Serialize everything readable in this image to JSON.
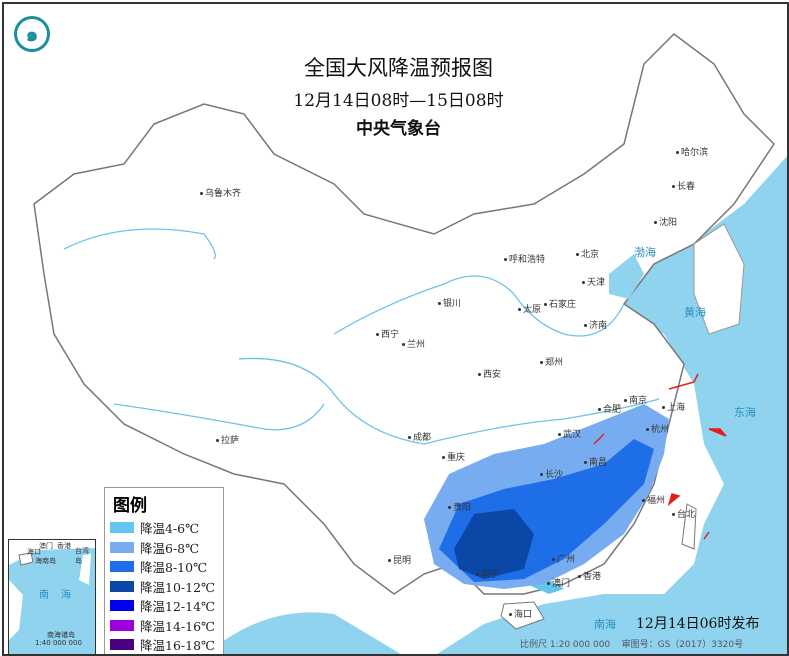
{
  "title": "全国大风降温预报图",
  "period": "12月14日08时—15日08时",
  "issuer": "中央气象台",
  "issued_time": "12月14日06时发布",
  "scale": "比例尺 1:20 000 000",
  "map_approval": "审图号：GS（2017）3320号",
  "logo_icon": "cma-logo",
  "legend": {
    "title": "图例",
    "items": [
      {
        "label": "降温4-6℃",
        "color": "#62c6ee"
      },
      {
        "label": "降温6-8℃",
        "color": "#78acf0"
      },
      {
        "label": "降温8-10℃",
        "color": "#1e6ee8"
      },
      {
        "label": "降温10-12℃",
        "color": "#0b47a6"
      },
      {
        "label": "降温12-14℃",
        "color": "#0000ee"
      },
      {
        "label": "降温14-16℃",
        "color": "#9b00dc"
      },
      {
        "label": "降温16-18℃",
        "color": "#4a0080"
      }
    ]
  },
  "inset": {
    "labels": [
      "澳门",
      "香港",
      "海口",
      "海南岛",
      "台湾岛",
      "南",
      "海",
      "南海诸岛",
      "1:40 000 000"
    ]
  },
  "cities": [
    "乌鲁木齐",
    "哈尔滨",
    "长春",
    "沈阳",
    "北京",
    "天津",
    "呼和浩特",
    "石家庄",
    "太原",
    "济南",
    "银川",
    "西宁",
    "兰州",
    "郑州",
    "西安",
    "合肥",
    "南京",
    "上海",
    "武汉",
    "杭州",
    "成都",
    "重庆",
    "长沙",
    "南昌",
    "拉萨",
    "贵阳",
    "福州",
    "台北",
    "昆明",
    "南宁",
    "广州",
    "香港",
    "澳门",
    "海口"
  ],
  "sea_labels": [
    "渤海",
    "黄海",
    "东海",
    "南海"
  ],
  "colors": {
    "sea": "#8fd3ee",
    "land": "#ffffff",
    "river": "#6ec2e6",
    "wind_barb": "#e02020"
  }
}
